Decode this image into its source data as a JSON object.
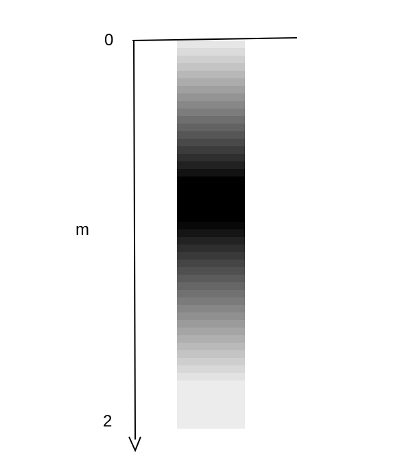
{
  "axis": {
    "top_value": "0",
    "bottom_value": "2",
    "label": "m"
  },
  "band": {
    "gradient": "white-black-white",
    "darkest_at": 1.0,
    "range": [
      0,
      2
    ]
  },
  "colors": {
    "line": "#000000",
    "background": "#ffffff"
  }
}
